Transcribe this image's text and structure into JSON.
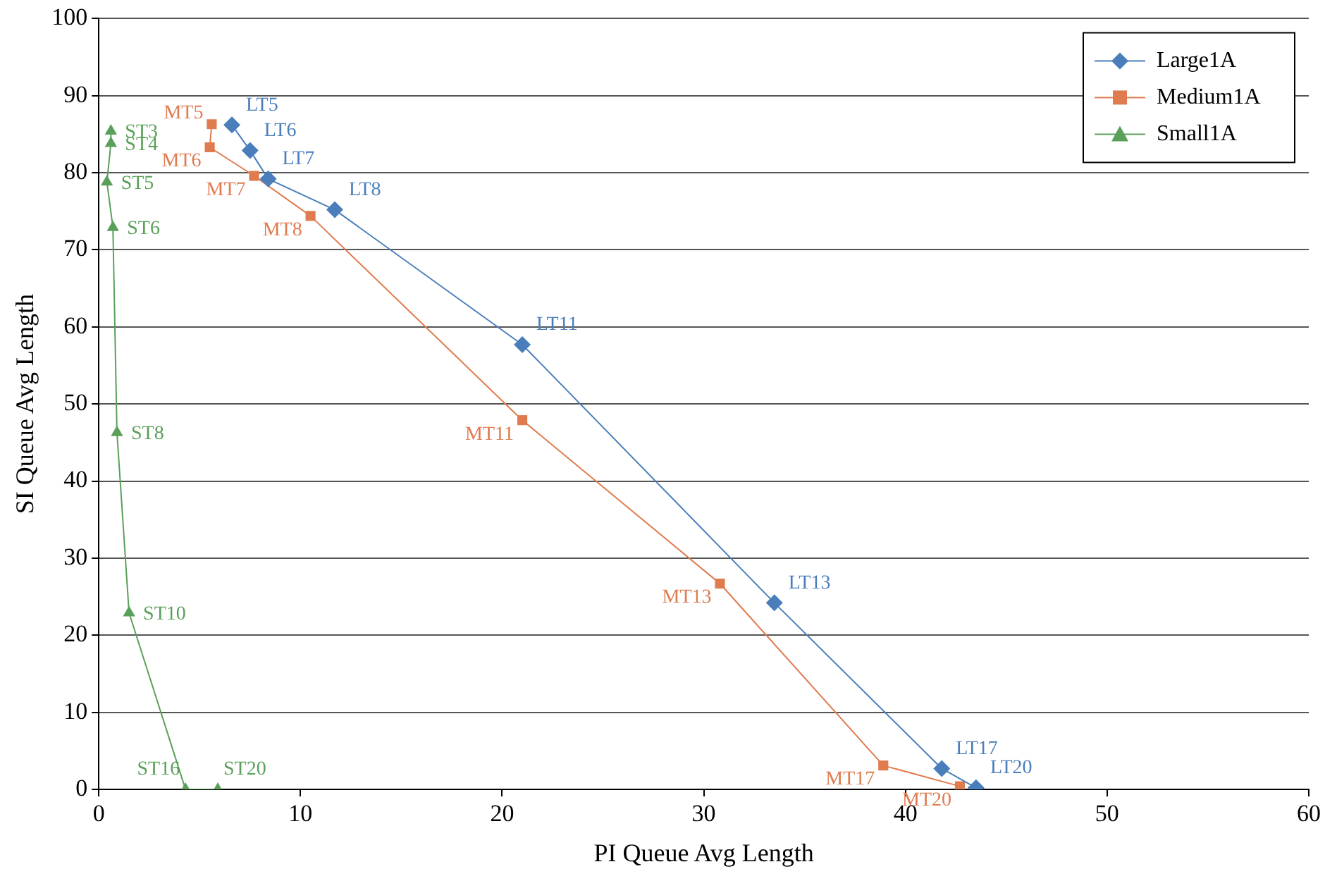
{
  "chart_data": {
    "type": "line",
    "xlabel": "PI Queue Avg Length",
    "ylabel": "SI Queue Avg Length",
    "xlim": [
      0,
      60
    ],
    "xticks": [
      0,
      10,
      20,
      30,
      40,
      50,
      60
    ],
    "ylim": [
      0,
      100
    ],
    "yticks": [
      0,
      10,
      20,
      30,
      40,
      50,
      60,
      70,
      80,
      90,
      100
    ],
    "grid": "y",
    "legend": "top right",
    "series": [
      {
        "name": "Large1A",
        "color": "#4a7ebb",
        "marker": "diamond",
        "x": [
          6.6,
          7.5,
          8.4,
          11.7,
          21.0,
          33.5,
          41.8,
          43.5
        ],
        "values": [
          86.2,
          82.9,
          79.2,
          75.2,
          57.7,
          24.2,
          2.7,
          0.2
        ]
      },
      {
        "name": "Medium1A",
        "color": "#e07b4f",
        "marker": "square",
        "x": [
          5.6,
          5.5,
          7.7,
          10.5,
          21.0,
          30.8,
          38.9,
          42.7
        ],
        "values": [
          86.3,
          83.3,
          79.6,
          74.4,
          47.9,
          26.7,
          3.1,
          0.4
        ]
      },
      {
        "name": "Small1A",
        "color": "#5aa05a",
        "marker": "triangle",
        "x": [
          0.6,
          0.6,
          0.4,
          0.7,
          0.9,
          1.5,
          4.3,
          5.9
        ],
        "values": [
          85.4,
          83.8,
          78.8,
          72.9,
          46.3,
          22.9,
          0,
          0
        ]
      }
    ],
    "annotations": [
      {
        "text": "LT5",
        "x": 6.6,
        "y": 86.2
      },
      {
        "text": "LT6",
        "x": 7.5,
        "y": 82.9
      },
      {
        "text": "LT7",
        "x": 8.4,
        "y": 79.2
      },
      {
        "text": "LT8",
        "x": 11.7,
        "y": 75.2
      },
      {
        "text": "LT11",
        "x": 21.0,
        "y": 57.7
      },
      {
        "text": "LT13",
        "x": 33.5,
        "y": 24.2
      },
      {
        "text": "LT17",
        "x": 41.8,
        "y": 2.7
      },
      {
        "text": "LT20",
        "x": 43.5,
        "y": 0.2
      },
      {
        "text": "MT5",
        "x": 5.6,
        "y": 86.3
      },
      {
        "text": "MT6",
        "x": 5.5,
        "y": 83.3
      },
      {
        "text": "MT7",
        "x": 7.7,
        "y": 79.6
      },
      {
        "text": "MT8",
        "x": 10.5,
        "y": 74.4
      },
      {
        "text": "MT11",
        "x": 21.0,
        "y": 47.9
      },
      {
        "text": "MT13",
        "x": 30.8,
        "y": 26.7
      },
      {
        "text": "MT17",
        "x": 38.9,
        "y": 3.1
      },
      {
        "text": "MT20",
        "x": 42.7,
        "y": 0.4
      },
      {
        "text": "ST3",
        "x": 0.6,
        "y": 85.4
      },
      {
        "text": "ST4",
        "x": 0.6,
        "y": 83.8
      },
      {
        "text": "ST5",
        "x": 0.4,
        "y": 78.8
      },
      {
        "text": "ST6",
        "x": 0.7,
        "y": 72.9
      },
      {
        "text": "ST8",
        "x": 0.9,
        "y": 46.3
      },
      {
        "text": "ST10",
        "x": 1.5,
        "y": 22.9
      },
      {
        "text": "ST16",
        "x": 4.3,
        "y": 0
      },
      {
        "text": "ST20",
        "x": 5.9,
        "y": 0
      }
    ]
  }
}
